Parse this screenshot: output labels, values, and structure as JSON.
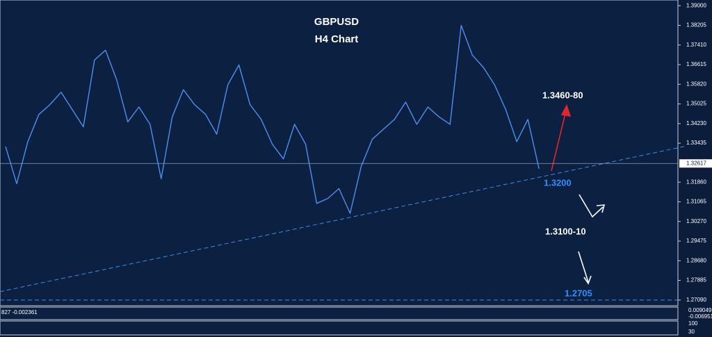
{
  "chart_data": {
    "type": "line",
    "title": "GBPUSD",
    "subtitle": "H4  Chart",
    "categories": [
      null,
      null,
      null,
      null,
      null,
      null,
      null,
      null,
      null,
      null,
      null,
      null,
      null,
      null,
      null,
      null,
      null,
      null,
      null,
      null,
      null,
      null,
      null,
      null,
      null,
      null,
      null,
      null,
      null,
      null,
      null,
      null,
      null,
      null,
      null,
      null,
      null,
      null,
      null,
      null,
      null,
      null,
      null,
      null,
      null,
      null,
      null,
      null,
      null,
      null,
      null,
      null,
      null,
      null,
      null,
      null,
      null,
      null,
      null,
      null,
      null
    ],
    "series": [
      {
        "name": "GBPUSD",
        "color": "#4f8ff0",
        "values": [
          1.333,
          1.318,
          1.335,
          1.346,
          1.35,
          1.355,
          1.348,
          1.341,
          1.368,
          1.372,
          1.36,
          1.343,
          1.349,
          1.342,
          1.32,
          1.345,
          1.356,
          1.35,
          1.346,
          1.338,
          1.358,
          1.366,
          1.35,
          1.344,
          1.334,
          1.328,
          1.342,
          1.334,
          1.31,
          1.312,
          1.316,
          1.306,
          1.325,
          1.336,
          1.34,
          1.344,
          1.351,
          1.342,
          1.349,
          1.345,
          1.342,
          1.382,
          1.37,
          1.365,
          1.358,
          1.348,
          1.335,
          1.344,
          1.324,
          null,
          null,
          null,
          null,
          null,
          null,
          null,
          null,
          null,
          null,
          null,
          null
        ]
      }
    ],
    "ylim": [
      1.2686,
      1.3923
    ],
    "yticks": [
      {
        "value": 1.39,
        "label": "1.39000"
      },
      {
        "value": 1.38205,
        "label": "1.38205"
      },
      {
        "value": 1.3741,
        "label": "1.37410"
      },
      {
        "value": 1.36615,
        "label": "1.36615"
      },
      {
        "value": 1.3582,
        "label": "1.35820"
      },
      {
        "value": 1.35025,
        "label": "1.35025"
      },
      {
        "value": 1.3423,
        "label": "1.34230"
      },
      {
        "value": 1.33435,
        "label": "1.33435"
      },
      {
        "value": 1.3186,
        "label": "1.31860"
      },
      {
        "value": 1.31065,
        "label": "1.31065"
      },
      {
        "value": 1.3027,
        "label": "1.30270"
      },
      {
        "value": 1.29475,
        "label": "1.29475"
      },
      {
        "value": 1.2868,
        "label": "1.28680"
      },
      {
        "value": 1.27885,
        "label": "1.27885"
      },
      {
        "value": 1.2709,
        "label": "1.27090"
      }
    ],
    "current_price": 1.32617,
    "trendline": [
      1.2743,
      1.3325
    ],
    "support_line": 1.2709,
    "annotations": [
      "1.3460-80",
      "1.3200",
      "1.3100-10",
      "1.2705"
    ],
    "indicators": {
      "macd_label": "827 -0.002361",
      "macd_high": "0.009049",
      "macd_low": "-0.006951",
      "rsi_high": "100",
      "rsi_low": "30"
    }
  }
}
